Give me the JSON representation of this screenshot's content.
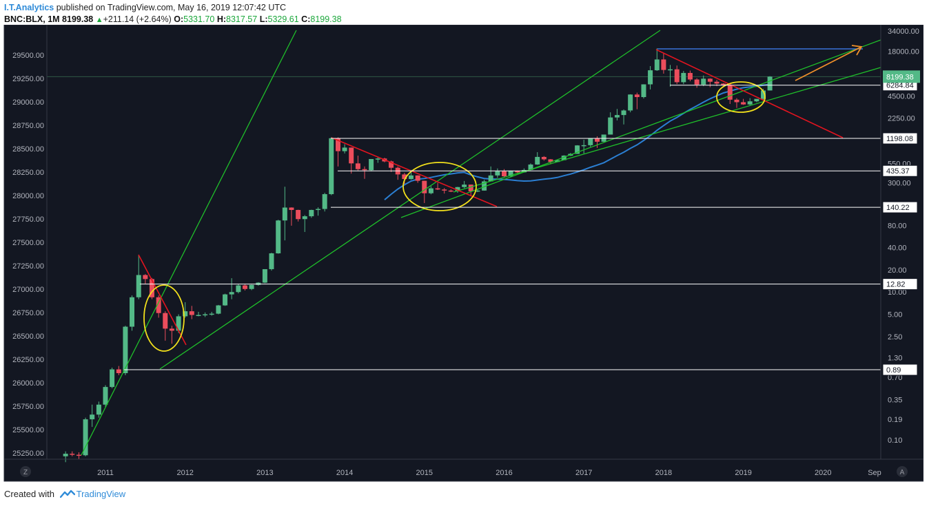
{
  "header": {
    "author": "I.T.Analytics",
    "published_text": "published on TradingView.com, May 16, 2019 12:07:42 UTC",
    "symbol": "BNC:BLX, 1M",
    "last": "8199.38",
    "change": "+211.14 (+2.64%)",
    "o_label": "O:",
    "o_value": "5331.70",
    "h_label": "H:",
    "h_value": "8317.57",
    "l_label": "L:",
    "l_value": "5329.61",
    "c_label": "C:",
    "c_value": "8199.38"
  },
  "footer": {
    "created_with": "Created with",
    "brand": "TradingView"
  },
  "corner": {
    "left": "Z",
    "right": "A"
  },
  "colors": {
    "background": "#131722",
    "up": "#53b987",
    "down": "#eb4d5c",
    "trend_green": "#1fbf2a",
    "trend_red": "#e3141f",
    "ellipse": "#f2e01c",
    "ma_blue": "#2b7fd3",
    "top_line": "#3b73d9",
    "arrow": "#f0902a",
    "price_badge": "#53b987"
  },
  "chart_data": {
    "type": "candlestick",
    "interval": "1M",
    "x_ticks": [
      "2011",
      "2012",
      "2013",
      "2014",
      "2015",
      "2016",
      "2017",
      "2018",
      "2019",
      "2020",
      "Sep"
    ],
    "y_scale": "log",
    "y_right_ticks": [
      "34000.00",
      "18000.00",
      "9000.00",
      "4500.00",
      "2250.00",
      "1100.00",
      "550.00",
      "300.00",
      "150.00",
      "80.00",
      "40.00",
      "20.00",
      "10.00",
      "5.00",
      "2.50",
      "1.30",
      "0.70",
      "0.35",
      "0.19",
      "0.10"
    ],
    "y_left_ticks": [
      "29500.00",
      "29250.00",
      "29000.00",
      "28750.00",
      "28500.00",
      "28250.00",
      "28000.00",
      "27750.00",
      "27500.00",
      "27250.00",
      "27000.00",
      "26750.00",
      "26500.00",
      "26250.00",
      "26000.00",
      "25750.00",
      "25500.00",
      "25250.00"
    ],
    "current_price": "8199.38",
    "levels": [
      "6284.84",
      "1198.08",
      "435.37",
      "140.22",
      "12.82",
      "0.89"
    ],
    "candles": [
      [
        2010.5,
        0.06,
        0.07,
        0.05,
        0.065
      ],
      [
        2010.583,
        0.065,
        0.07,
        0.06,
        0.063
      ],
      [
        2010.667,
        0.063,
        0.068,
        0.055,
        0.062
      ],
      [
        2010.75,
        0.062,
        0.2,
        0.06,
        0.19
      ],
      [
        2010.833,
        0.19,
        0.3,
        0.15,
        0.22
      ],
      [
        2010.917,
        0.22,
        0.33,
        0.2,
        0.3
      ],
      [
        2011.0,
        0.3,
        0.55,
        0.28,
        0.52
      ],
      [
        2011.083,
        0.52,
        0.95,
        0.5,
        0.9
      ],
      [
        2011.167,
        0.9,
        1.0,
        0.75,
        0.8
      ],
      [
        2011.25,
        0.8,
        3.5,
        0.75,
        3.4
      ],
      [
        2011.333,
        3.4,
        9.0,
        3.0,
        8.5
      ],
      [
        2011.417,
        8.5,
        32,
        8.0,
        17
      ],
      [
        2011.5,
        17,
        17.5,
        13,
        15
      ],
      [
        2011.583,
        15,
        15.5,
        8,
        8.5
      ],
      [
        2011.667,
        8.5,
        9,
        4.5,
        5.2
      ],
      [
        2011.75,
        5.2,
        5.5,
        2.2,
        3.2
      ],
      [
        2011.833,
        3.2,
        3.5,
        2.0,
        3.0
      ],
      [
        2011.917,
        3.0,
        5.0,
        2.8,
        4.7
      ],
      [
        2012.0,
        4.7,
        7.3,
        4.5,
        5.5
      ],
      [
        2012.083,
        5.5,
        6.5,
        4.3,
        4.9
      ],
      [
        2012.167,
        4.9,
        5.4,
        4.7,
        4.9
      ],
      [
        2012.25,
        4.9,
        5.3,
        4.6,
        5.0
      ],
      [
        2012.333,
        5.0,
        5.4,
        4.8,
        5.1
      ],
      [
        2012.417,
        5.1,
        6.7,
        5.0,
        6.6
      ],
      [
        2012.5,
        6.6,
        9.5,
        6.5,
        9.3
      ],
      [
        2012.583,
        9.3,
        15.4,
        8.0,
        10.0
      ],
      [
        2012.667,
        10.0,
        12.9,
        9.6,
        12.3
      ],
      [
        2012.75,
        12.3,
        12.7,
        10.5,
        11.0
      ],
      [
        2012.833,
        11.0,
        12.6,
        10.6,
        12.5
      ],
      [
        2012.917,
        12.5,
        13.6,
        12.2,
        13.4
      ],
      [
        2013.0,
        13.4,
        20.4,
        13.2,
        20.4
      ],
      [
        2013.083,
        20.4,
        34,
        19.5,
        33.4
      ],
      [
        2013.167,
        33.4,
        95,
        33,
        93
      ],
      [
        2013.25,
        93,
        266,
        50,
        139
      ],
      [
        2013.333,
        139,
        140,
        79,
        129
      ],
      [
        2013.417,
        129,
        130,
        90,
        97
      ],
      [
        2013.5,
        97,
        110,
        65,
        106
      ],
      [
        2013.583,
        106,
        130,
        101,
        129
      ],
      [
        2013.667,
        129,
        140,
        108,
        133
      ],
      [
        2013.75,
        133,
        220,
        123,
        211
      ],
      [
        2013.833,
        211,
        1242,
        204,
        1205
      ],
      [
        2013.917,
        1205,
        1240,
        500,
        805
      ],
      [
        2014.0,
        805,
        1000,
        750,
        900
      ],
      [
        2014.083,
        900,
        905,
        400,
        550
      ],
      [
        2014.167,
        550,
        700,
        440,
        460
      ],
      [
        2014.25,
        460,
        500,
        340,
        445
      ],
      [
        2014.333,
        445,
        630,
        430,
        630
      ],
      [
        2014.417,
        630,
        680,
        560,
        640
      ],
      [
        2014.5,
        640,
        655,
        570,
        585
      ],
      [
        2014.583,
        585,
        600,
        420,
        480
      ],
      [
        2014.667,
        480,
        500,
        330,
        390
      ],
      [
        2014.75,
        390,
        410,
        290,
        338
      ],
      [
        2014.833,
        338,
        450,
        330,
        378
      ],
      [
        2014.917,
        378,
        380,
        300,
        320
      ],
      [
        2015.0,
        320,
        320,
        160,
        217
      ],
      [
        2015.083,
        217,
        270,
        210,
        253
      ],
      [
        2015.167,
        253,
        300,
        240,
        244
      ],
      [
        2015.25,
        244,
        255,
        215,
        236
      ],
      [
        2015.333,
        236,
        245,
        225,
        230
      ],
      [
        2015.417,
        230,
        265,
        220,
        263
      ],
      [
        2015.5,
        263,
        318,
        254,
        284
      ],
      [
        2015.583,
        284,
        285,
        200,
        230
      ],
      [
        2015.667,
        230,
        245,
        225,
        236
      ],
      [
        2015.75,
        236,
        330,
        235,
        314
      ],
      [
        2015.833,
        314,
        500,
        310,
        378
      ],
      [
        2015.917,
        378,
        470,
        350,
        430
      ],
      [
        2016.0,
        430,
        460,
        350,
        368
      ],
      [
        2016.083,
        368,
        440,
        365,
        437
      ],
      [
        2016.167,
        437,
        440,
        400,
        416
      ],
      [
        2016.25,
        416,
        470,
        412,
        448
      ],
      [
        2016.333,
        448,
        550,
        440,
        531
      ],
      [
        2016.417,
        531,
        780,
        525,
        673
      ],
      [
        2016.5,
        673,
        690,
        600,
        624
      ],
      [
        2016.583,
        624,
        630,
        535,
        575
      ],
      [
        2016.667,
        575,
        615,
        570,
        608
      ],
      [
        2016.75,
        608,
        710,
        605,
        700
      ],
      [
        2016.833,
        700,
        760,
        690,
        740
      ],
      [
        2016.917,
        740,
        970,
        740,
        963
      ],
      [
        2017.0,
        963,
        1150,
        750,
        970
      ],
      [
        2017.083,
        970,
        1200,
        920,
        1190
      ],
      [
        2017.167,
        1190,
        1280,
        890,
        1080
      ],
      [
        2017.25,
        1080,
        1350,
        1070,
        1350
      ],
      [
        2017.333,
        1350,
        2700,
        1350,
        2300
      ],
      [
        2017.417,
        2300,
        3000,
        2100,
        2480
      ],
      [
        2017.5,
        2480,
        2950,
        1850,
        2860
      ],
      [
        2017.583,
        2860,
        4740,
        2700,
        4700
      ],
      [
        2017.667,
        4700,
        4980,
        2970,
        4340
      ],
      [
        2017.75,
        4340,
        6470,
        4150,
        6450
      ],
      [
        2017.833,
        6450,
        11400,
        5500,
        10000
      ],
      [
        2017.917,
        10000,
        19800,
        9800,
        14000
      ],
      [
        2018.0,
        14000,
        17100,
        9000,
        10100
      ],
      [
        2018.083,
        10100,
        11800,
        6000,
        10300
      ],
      [
        2018.167,
        10300,
        11600,
        6500,
        6900
      ],
      [
        2018.25,
        6900,
        9800,
        6500,
        9200
      ],
      [
        2018.333,
        9200,
        9900,
        7100,
        7500
      ],
      [
        2018.417,
        7500,
        7800,
        5800,
        6400
      ],
      [
        2018.5,
        6400,
        8500,
        6100,
        7700
      ],
      [
        2018.583,
        7700,
        7800,
        5900,
        7000
      ],
      [
        2018.667,
        7000,
        7400,
        6100,
        6600
      ],
      [
        2018.75,
        6600,
        6700,
        6200,
        6300
      ],
      [
        2018.833,
        6300,
        6500,
        3500,
        4000
      ],
      [
        2018.917,
        4000,
        4200,
        3100,
        3700
      ],
      [
        2019.0,
        3700,
        4100,
        3400,
        3450
      ],
      [
        2019.083,
        3450,
        4200,
        3350,
        3800
      ],
      [
        2019.167,
        3800,
        4100,
        3700,
        4100
      ],
      [
        2019.25,
        4100,
        5600,
        4000,
        5330
      ],
      [
        2019.333,
        5331.7,
        8317.57,
        5329.61,
        8199.38
      ]
    ]
  }
}
